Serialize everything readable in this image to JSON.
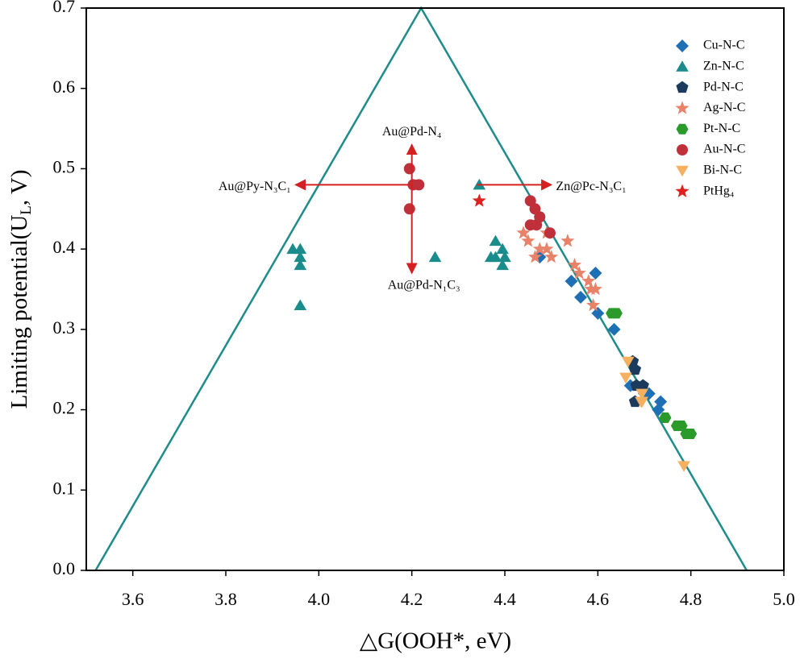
{
  "chart_data": {
    "type": "scatter",
    "xlabel": "△G(OOH*, eV)",
    "ylabel": [
      "Limiting potential(U",
      "L",
      ", V)"
    ],
    "xlim": [
      3.5,
      5.0
    ],
    "ylim": [
      0.0,
      0.7
    ],
    "xticks": [
      3.6,
      3.8,
      {
        "value": 4.0,
        "label": "4.0"
      },
      4.2,
      4.4,
      4.6,
      4.8,
      {
        "value": 5.0,
        "label": "5.0"
      }
    ],
    "yticks": [
      {
        "value": 0.0,
        "label": "0.0"
      },
      0.1,
      0.2,
      0.3,
      0.4,
      0.5,
      0.6,
      0.7
    ],
    "volcano": {
      "color": "#1f8c8c",
      "x": [
        3.52,
        4.22,
        4.92
      ],
      "values": [
        0.0,
        0.7,
        0.0
      ]
    },
    "series": [
      {
        "name": "Cu-N-C",
        "color": "#1f6fb5",
        "marker": "diamond",
        "x": [
          4.475,
          4.543,
          4.563,
          4.595,
          4.6,
          4.635,
          4.67,
          4.7,
          4.71,
          4.735,
          4.73
        ],
        "values": [
          0.39,
          0.36,
          0.34,
          0.37,
          0.32,
          0.3,
          0.23,
          0.22,
          0.22,
          0.21,
          0.2
        ]
      },
      {
        "name": "Zn-N-C",
        "color": "#1a8c8c",
        "marker": "triangle",
        "x": [
          3.944,
          3.96,
          3.96,
          3.96,
          3.96,
          4.25,
          4.345,
          4.38,
          4.37,
          4.395,
          4.395,
          4.38,
          4.4
        ],
        "values": [
          0.4,
          0.4,
          0.39,
          0.38,
          0.33,
          0.39,
          0.48,
          0.41,
          0.39,
          0.4,
          0.38,
          0.39,
          0.39
        ]
      },
      {
        "name": "Pd-N-C",
        "color": "#1b3a5c",
        "marker": "pentagon",
        "x": [
          4.675,
          4.68,
          4.683,
          4.697,
          4.68
        ],
        "values": [
          0.26,
          0.25,
          0.23,
          0.23,
          0.21
        ]
      },
      {
        "name": "Ag-N-C",
        "color": "#e8836a",
        "marker": "star",
        "x": [
          4.44,
          4.45,
          4.465,
          4.475,
          4.49,
          4.49,
          4.5,
          4.535,
          4.55,
          4.56,
          4.58,
          4.585,
          4.59,
          4.595
        ],
        "values": [
          0.42,
          0.41,
          0.39,
          0.4,
          0.42,
          0.4,
          0.39,
          0.41,
          0.38,
          0.37,
          0.36,
          0.35,
          0.33,
          0.35
        ]
      },
      {
        "name": "Pt-N-C",
        "color": "#2a9a2a",
        "marker": "hexagon",
        "x": [
          4.63,
          4.64,
          4.745,
          4.77,
          4.78,
          4.79,
          4.8
        ],
        "values": [
          0.32,
          0.32,
          0.19,
          0.18,
          0.18,
          0.17,
          0.17
        ]
      },
      {
        "name": "Au-N-C",
        "color": "#c0303a",
        "marker": "circle",
        "x": [
          4.195,
          4.203,
          4.215,
          4.195,
          4.455,
          4.465,
          4.475,
          4.455,
          4.468,
          4.497
        ],
        "values": [
          0.5,
          0.48,
          0.48,
          0.45,
          0.46,
          0.45,
          0.44,
          0.43,
          0.43,
          0.42
        ]
      },
      {
        "name": "Bi-N-C",
        "color": "#f5b060",
        "marker": "down-triangle",
        "x": [
          4.66,
          4.665,
          4.695,
          4.693,
          4.695,
          4.785
        ],
        "values": [
          0.24,
          0.26,
          0.22,
          0.21,
          0.21,
          0.13
        ]
      },
      {
        "name": "PtHg₄",
        "color": "#e02020",
        "marker": "star",
        "x": [
          4.345
        ],
        "values": [
          0.46
        ]
      }
    ],
    "arrow_color": "#d42020",
    "arrows": [
      {
        "x": [
          4.2,
          4.2
        ],
        "y": [
          0.48,
          0.53
        ]
      },
      {
        "x": [
          4.2,
          3.95
        ],
        "y": [
          0.48,
          0.48
        ]
      },
      {
        "x": [
          4.2,
          4.2
        ],
        "y": [
          0.48,
          0.37
        ]
      },
      {
        "x": [
          4.34,
          4.5
        ],
        "y": [
          0.48,
          0.48
        ]
      }
    ],
    "annotations": [
      {
        "text": "Au@Pd-N₄",
        "x": 4.2,
        "y": 0.545,
        "align": "middle"
      },
      {
        "text": "Au@Py-N₃C₁",
        "x": 3.94,
        "y": 0.477,
        "align": "end"
      },
      {
        "text": "Au@Pd-N₁C₃",
        "x": 4.226,
        "y": 0.354,
        "align": "middle"
      },
      {
        "text": "Zn@Pc-N₃C₁",
        "x": 4.51,
        "y": 0.477,
        "align": "start"
      }
    ]
  }
}
